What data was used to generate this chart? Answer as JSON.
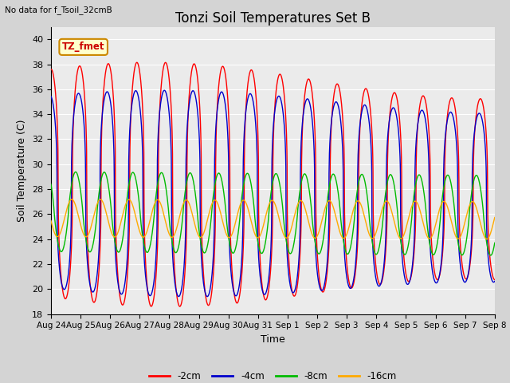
{
  "title": "Tonzi Soil Temperatures Set B",
  "subtitle": "No data for f_Tsoil_32cmB",
  "xlabel": "Time",
  "ylabel": "Soil Temperature (C)",
  "ylim": [
    18,
    41
  ],
  "yticks": [
    18,
    20,
    22,
    24,
    26,
    28,
    30,
    32,
    34,
    36,
    38,
    40
  ],
  "annotation_text": "TZ_fmet",
  "annotation_color": "#cc0000",
  "annotation_bg": "#ffffcc",
  "annotation_border": "#cc8800",
  "fig_bg_color": "#d4d4d4",
  "plot_bg": "#ebebeb",
  "colors": {
    "-2cm": "#ff0000",
    "-4cm": "#0000cc",
    "-8cm": "#00bb00",
    "-16cm": "#ffaa00"
  },
  "legend_labels": [
    "-2cm",
    "-4cm",
    "-8cm",
    "-16cm"
  ],
  "xtick_labels": [
    "Aug 24",
    "Aug 25",
    "Aug 26",
    "Aug 27",
    "Aug 28",
    "Aug 29",
    "Aug 30",
    "Aug 31",
    "Sep 1",
    "Sep 2",
    "Sep 3",
    "Sep 4",
    "Sep 5",
    "Sep 6",
    "Sep 7",
    "Sep 8"
  ],
  "n_days": 15.5
}
